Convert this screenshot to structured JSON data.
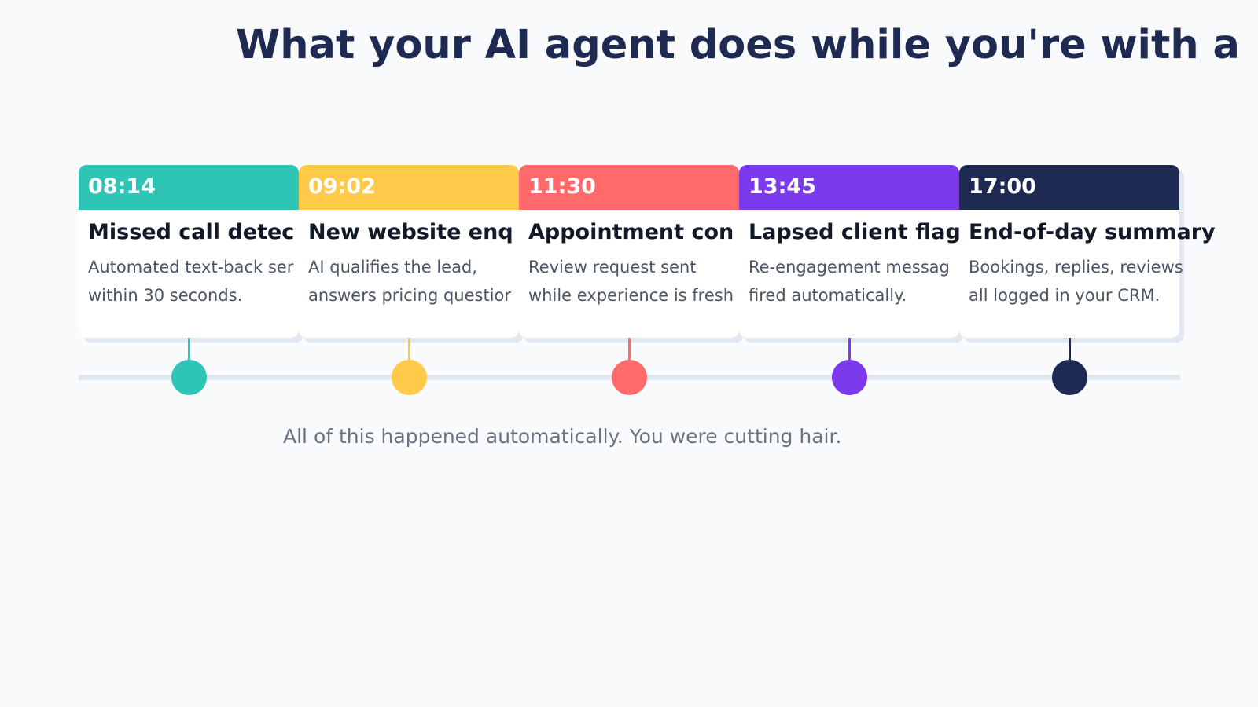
{
  "title": "What your AI agent does while you're with a",
  "caption": "All of this happened automatically. You were cutting hair.",
  "events": [
    {
      "time": "08:14",
      "title": "Missed call detec",
      "desc_line1": "Automated text-back ser",
      "desc_line2": "within 30 seconds.",
      "color": "#2ec4b6"
    },
    {
      "time": "09:02",
      "title": "New website enq",
      "desc_line1": "AI qualifies the lead,",
      "desc_line2": "answers pricing questior",
      "color": "#ffc94a"
    },
    {
      "time": "11:30",
      "title": "Appointment con",
      "desc_line1": "Review request sent",
      "desc_line2": "while experience is fresh",
      "color": "#ff6b6b"
    },
    {
      "time": "13:45",
      "title": "Lapsed client flag",
      "desc_line1": "Re-engagement messag",
      "desc_line2": "fired automatically.",
      "color": "#7c3aed"
    },
    {
      "time": "17:00",
      "title": "End-of-day summary",
      "desc_line1": "Bookings, replies, reviews",
      "desc_line2": "all logged in your CRM.",
      "color": "#1e2a52"
    }
  ]
}
